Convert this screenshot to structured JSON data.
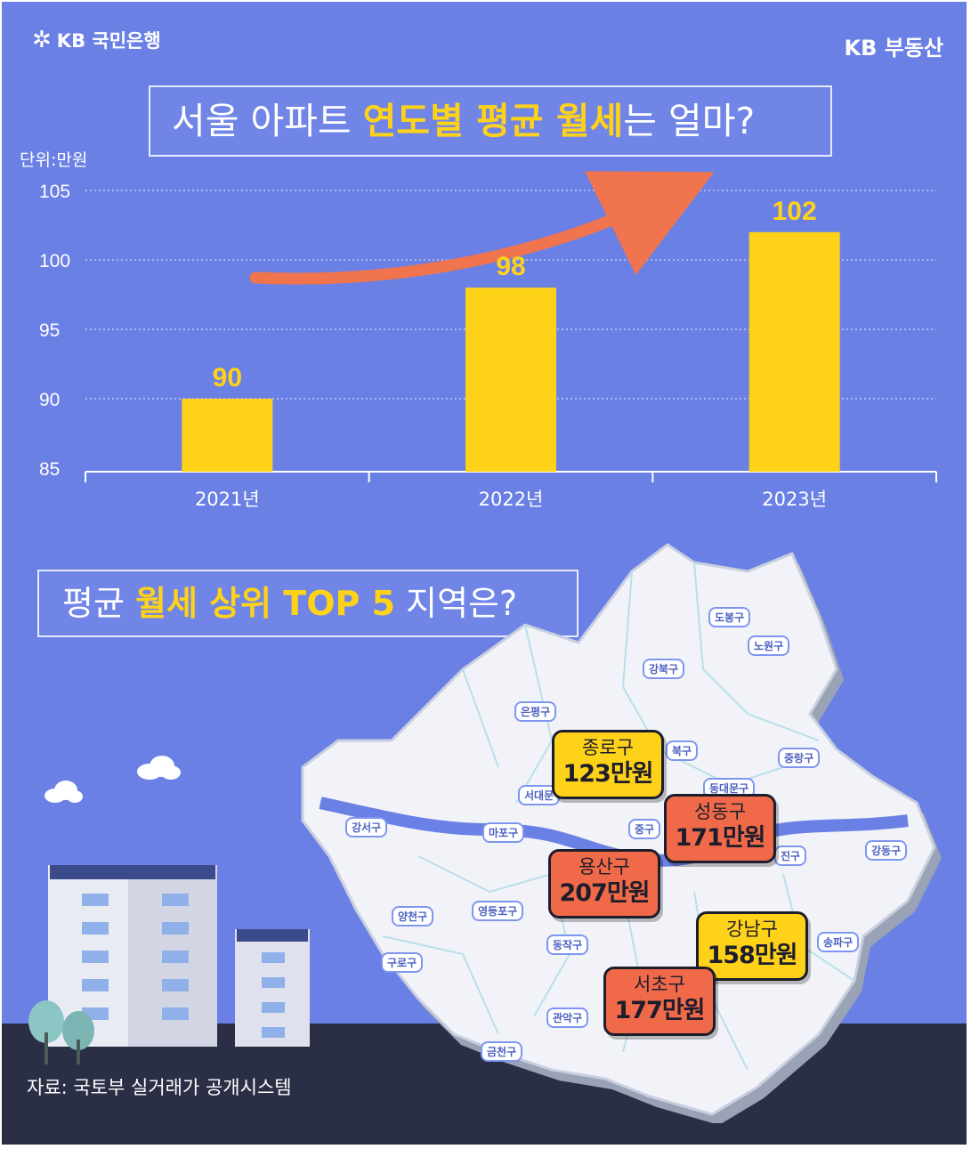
{
  "brand": {
    "bank": "KB 국민은행",
    "realty": "KB 부동산"
  },
  "chart_title": {
    "pre": "서울 아파트 ",
    "highlight": "연도별 평균 월세",
    "post": "는 얼마?"
  },
  "unit_label": "단위:만원",
  "chart_data": {
    "type": "bar",
    "categories": [
      "2021년",
      "2022년",
      "2023년"
    ],
    "values": [
      90,
      98,
      102
    ],
    "ylim": [
      85,
      105
    ],
    "yticks": [
      85,
      90,
      95,
      100,
      105
    ],
    "grid": true,
    "colors": {
      "bar": "#ffd21a",
      "label": "#ffd21a",
      "arrow": "#f0744d",
      "background": "#6b80e4"
    }
  },
  "map_title": {
    "pre": "평균 ",
    "highlight": "월세 상위 TOP 5",
    "post": " 지역은?"
  },
  "top5": [
    {
      "name": "종로구",
      "value": "123만원",
      "color": "yellow"
    },
    {
      "name": "성동구",
      "value": "171만원",
      "color": "orange"
    },
    {
      "name": "용산구",
      "value": "207만원",
      "color": "orange"
    },
    {
      "name": "강남구",
      "value": "158만원",
      "color": "yellow"
    },
    {
      "name": "서초구",
      "value": "177만원",
      "color": "orange"
    }
  ],
  "districts": [
    "도봉구",
    "노원구",
    "강북구",
    "은평구",
    "북구",
    "중랑구",
    "서대문",
    "동대문구",
    "강서구",
    "마포구",
    "중구",
    "진구",
    "강동구",
    "양천구",
    "영등포구",
    "송파구",
    "구로구",
    "동작구",
    "관악구",
    "금천구"
  ],
  "source": "자료: 국토부 실거래가 공개시스템"
}
